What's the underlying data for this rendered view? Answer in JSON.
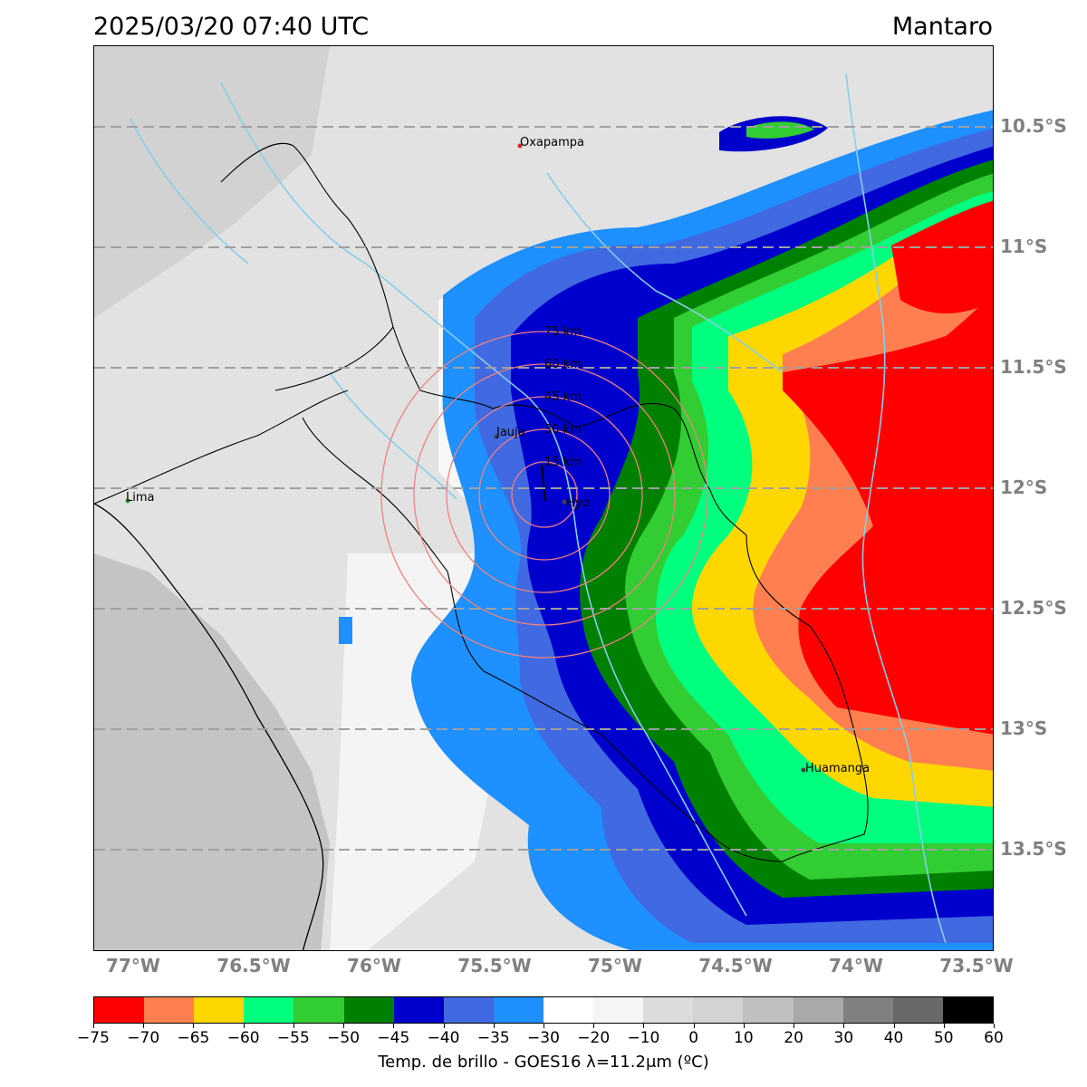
{
  "header": {
    "datetime": "2025/03/20 07:40 UTC",
    "region": "Mantaro"
  },
  "map": {
    "lat_ticks": [
      "10.5°S",
      "11°S",
      "11.5°S",
      "12°S",
      "12.5°S",
      "13°S",
      "13.5°S"
    ],
    "lon_ticks": [
      "77°W",
      "76.5°W",
      "76°W",
      "75.5°W",
      "75°W",
      "74.5°W",
      "74°W",
      "73.5°W"
    ],
    "cities": [
      {
        "name": "Oxapampa",
        "color": "#d62728"
      },
      {
        "name": "Jauja",
        "color": "#444444"
      },
      {
        "name": "Hyo",
        "color": "#444444"
      },
      {
        "name": "Lima",
        "color": "#2ca02c"
      },
      {
        "name": "Huamanga",
        "color": "#444444"
      }
    ],
    "range_rings": [
      "15 km",
      "30 km",
      "45 km",
      "60 km",
      "75 km"
    ]
  },
  "colorbar": {
    "colors": [
      "#ff0000",
      "#ff7f50",
      "#ffd700",
      "#00ff7f",
      "#32cd32",
      "#008000",
      "#0000cd",
      "#4169e1",
      "#1e90ff",
      "#ffffff",
      "#f5f5f5",
      "#dcdcdc",
      "#d3d3d3",
      "#c0c0c0",
      "#a9a9a9",
      "#808080",
      "#696969",
      "#000000"
    ],
    "tick_labels": [
      "−75",
      "−70",
      "−65",
      "−60",
      "−55",
      "−50",
      "−45",
      "−40",
      "−35",
      "−30",
      "−20",
      "−10",
      "0",
      "10",
      "20",
      "30",
      "40",
      "50",
      "60"
    ],
    "label": "Temp. de brillo - GOES16 λ=11.2μm (ºC)"
  }
}
